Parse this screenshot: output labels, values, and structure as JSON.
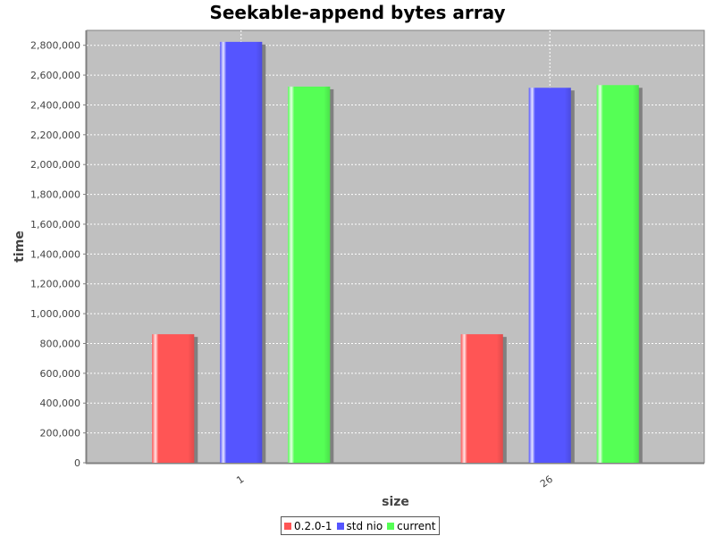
{
  "chart_data": {
    "type": "bar",
    "title": "Seekable-append bytes array",
    "xlabel": "size",
    "ylabel": "time",
    "categories": [
      "1",
      "26"
    ],
    "series": [
      {
        "name": "0.2.0-1",
        "color": "#ff5555",
        "values": [
          862000,
          862000
        ]
      },
      {
        "name": "std nio",
        "color": "#5555ff",
        "values": [
          2823000,
          2515000
        ]
      },
      {
        "name": "current",
        "color": "#55ff55",
        "values": [
          2523000,
          2533000
        ]
      }
    ],
    "ylim": [
      0,
      2900000
    ],
    "yticks": [
      0,
      200000,
      400000,
      600000,
      800000,
      1000000,
      1200000,
      1400000,
      1600000,
      1800000,
      2000000,
      2200000,
      2400000,
      2600000,
      2800000
    ],
    "ytick_labels": [
      "0",
      "200,000",
      "400,000",
      "600,000",
      "800,000",
      "1,000,000",
      "1,200,000",
      "1,400,000",
      "1,600,000",
      "1,800,000",
      "2,000,000",
      "2,200,000",
      "2,400,000",
      "2,600,000",
      "2,800,000"
    ],
    "grid": true,
    "plot_background": "#c0c0c0",
    "legend_position": "bottom"
  }
}
